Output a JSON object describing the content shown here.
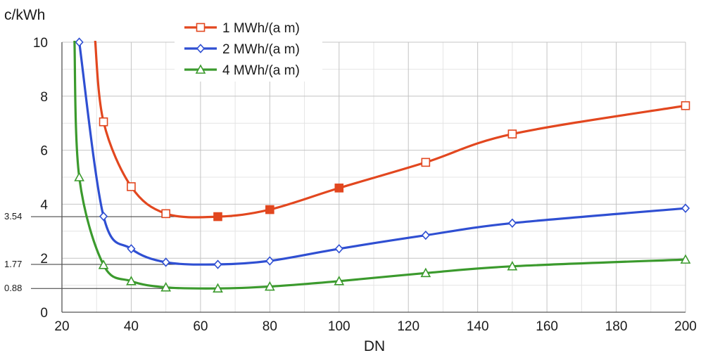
{
  "chart_data": {
    "type": "line",
    "title": "",
    "xlabel": "DN",
    "ylabel": "c/kWh",
    "xlim": [
      20,
      200
    ],
    "ylim": [
      0,
      10
    ],
    "grid": true,
    "legend_position": "top-center",
    "x_ticks": [
      20,
      40,
      60,
      80,
      100,
      120,
      140,
      160,
      180,
      200
    ],
    "y_ticks": [
      0,
      2,
      4,
      6,
      8,
      10
    ],
    "reference_lines": [
      {
        "label": "3.54",
        "value": 3.54
      },
      {
        "label": "1.77",
        "value": 1.77
      },
      {
        "label": "0.88",
        "value": 0.88
      }
    ],
    "series": [
      {
        "name": "1 MWh/(a m)",
        "color": "#e2471f",
        "marker": "square",
        "highlight_points": [
          65,
          80,
          100
        ],
        "curve_start": {
          "x": 29.5,
          "y": 10.2
        },
        "x": [
          32,
          40,
          50,
          65,
          80,
          100,
          125,
          150,
          200
        ],
        "y": [
          7.05,
          4.65,
          3.65,
          3.54,
          3.8,
          4.6,
          5.55,
          6.6,
          7.65
        ]
      },
      {
        "name": "2 MWh/(a m)",
        "color": "#2f4fd2",
        "marker": "diamond",
        "highlight_points": [],
        "curve_start": null,
        "x": [
          25,
          32,
          40,
          50,
          65,
          80,
          100,
          125,
          150,
          200
        ],
        "y": [
          10.0,
          3.55,
          2.35,
          1.85,
          1.77,
          1.9,
          2.35,
          2.85,
          3.3,
          3.85
        ]
      },
      {
        "name": "4 MWh/(a m)",
        "color": "#3b9a2d",
        "marker": "triangle",
        "highlight_points": [],
        "curve_start": {
          "x": 23.6,
          "y": 10.2
        },
        "x": [
          25,
          32,
          40,
          50,
          65,
          80,
          100,
          125,
          150,
          200
        ],
        "y": [
          5.0,
          1.75,
          1.15,
          0.92,
          0.88,
          0.95,
          1.15,
          1.45,
          1.7,
          1.95
        ]
      }
    ]
  }
}
